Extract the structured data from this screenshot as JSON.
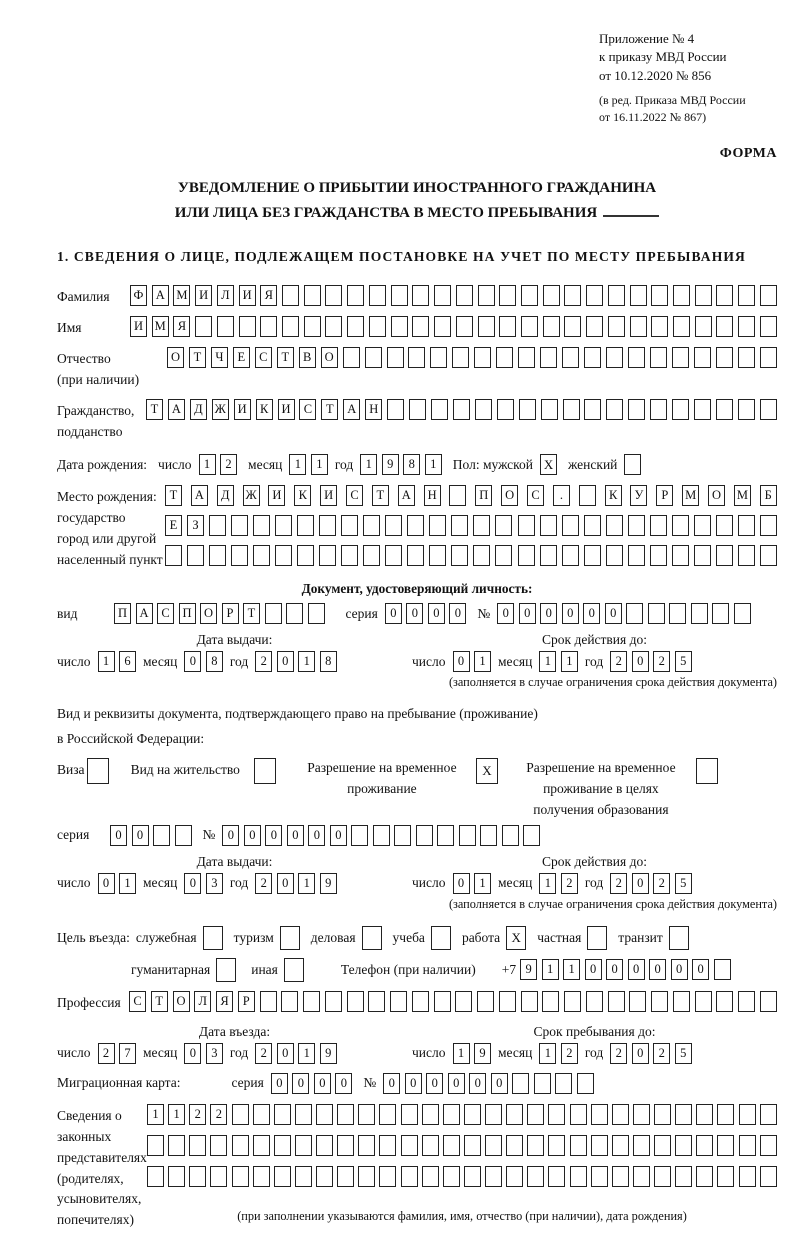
{
  "meta": {
    "appendix1": "Приложение № 4",
    "appendix2": "к приказу МВД России",
    "appendix3": "от 10.12.2020 № 856",
    "revision1": "(в ред. Приказа МВД России",
    "revision2": "от 16.11.2022 № 867)",
    "form_label": "ФОРМА"
  },
  "title": {
    "line1": "УВЕДОМЛЕНИЕ О ПРИБЫТИИ ИНОСТРАННОГО ГРАЖДАНИНА",
    "line2": "ИЛИ ЛИЦА БЕЗ ГРАЖДАНСТВА В МЕСТО ПРЕБЫВАНИЯ"
  },
  "section1": {
    "heading": "1. СВЕДЕНИЯ О ЛИЦЕ, ПОДЛЕЖАЩЕМ ПОСТАНОВКЕ НА УЧЕТ ПО МЕСТУ ПРЕБЫВАНИЯ",
    "surname": {
      "label": "Фамилия",
      "text": "ФАМИЛИЯ",
      "count": 30
    },
    "given_name": {
      "label": "Имя",
      "text": "ИМЯ",
      "count": 30
    },
    "patronymic": {
      "label1": "Отчество",
      "label2": "(при наличии)",
      "text": "ОТЧЕСТВО",
      "count": 28
    },
    "citizenship": {
      "label1": "Гражданство,",
      "label2": "подданство",
      "text": "ТАДЖИКИСТАН",
      "count": 29
    },
    "birth_date": {
      "label": "Дата рождения:",
      "day_label": "число",
      "day": {
        "text": "12",
        "count": 2
      },
      "month_label": "месяц",
      "month": {
        "text": "11",
        "count": 2
      },
      "year_label": "год",
      "year": {
        "text": "1981",
        "count": 4
      },
      "sex_label": "Пол: мужской",
      "male_mark": "X",
      "female_label": "женский",
      "female_mark": ""
    },
    "birth_place": {
      "label1": "Место рождения:",
      "label2": "государство",
      "label3": "город или другой",
      "label4": "населенный пункт",
      "row1": {
        "text": "ТАДЖИКИСТАН ПОС. КУРМОМБ",
        "count": 24
      },
      "row2": {
        "text": "ЕЗ",
        "count": 28
      },
      "row3": {
        "text": "",
        "count": 28
      }
    },
    "identity_doc": {
      "heading": "Документ, удостоверяющий личность:",
      "kind_label": "вид",
      "kind": {
        "text": "ПАСПОРТ",
        "count": 10
      },
      "series_label": "серия",
      "series": {
        "text": "0000",
        "count": 4
      },
      "number_label": "№",
      "number": {
        "text": "000000",
        "count": 12
      },
      "issue_label": "Дата выдачи:",
      "issue_day_label": "число",
      "issue_day": {
        "text": "16",
        "count": 2
      },
      "issue_month_label": "месяц",
      "issue_month": {
        "text": "08",
        "count": 2
      },
      "issue_year_label": "год",
      "issue_year": {
        "text": "2018",
        "count": 4
      },
      "expiry_label": "Срок действия до:",
      "expiry_day_label": "число",
      "expiry_day": {
        "text": "01",
        "count": 2
      },
      "expiry_month_label": "месяц",
      "expiry_month": {
        "text": "11",
        "count": 2
      },
      "expiry_year_label": "год",
      "expiry_year": {
        "text": "2025",
        "count": 4
      },
      "footnote": "(заполняется в случае ограничения срока действия документа)"
    },
    "residence_doc": {
      "intro1": "Вид и реквизиты документа, подтверждающего право на пребывание (проживание)",
      "intro2": "в Российской Федерации:",
      "opt1_label": "Виза",
      "opt1_mark": "",
      "opt2_label": "Вид на жительство",
      "opt2_mark": "",
      "opt3_label": "Разрешение на временное проживание",
      "opt3_mark": "X",
      "opt4_label": "Разрешение на временное проживание в целях получения образования",
      "opt4_mark": "",
      "series_label": "серия",
      "series": {
        "text": "00",
        "count": 4
      },
      "number_label": "№",
      "number": {
        "text": "000000",
        "count": 15
      },
      "issue_label": "Дата выдачи:",
      "issue_day_label": "число",
      "issue_day": {
        "text": "01",
        "count": 2
      },
      "issue_month_label": "месяц",
      "issue_month": {
        "text": "03",
        "count": 2
      },
      "issue_year_label": "год",
      "issue_year": {
        "text": "2019",
        "count": 4
      },
      "expiry_label": "Срок действия до:",
      "expiry_day_label": "число",
      "expiry_day": {
        "text": "01",
        "count": 2
      },
      "expiry_month_label": "месяц",
      "expiry_month": {
        "text": "12",
        "count": 2
      },
      "expiry_year_label": "год",
      "expiry_year": {
        "text": "2025",
        "count": 4
      },
      "footnote": "(заполняется в случае ограничения срока действия документа)"
    },
    "entry_purpose": {
      "label": "Цель въезда:",
      "opt_business_label": "служебная",
      "opt_business_mark": "",
      "opt_tourism_label": "туризм",
      "opt_tourism_mark": "",
      "opt_commercial_label": "деловая",
      "opt_commercial_mark": "",
      "opt_study_label": "учеба",
      "opt_study_mark": "",
      "opt_work_label": "работа",
      "opt_work_mark": "X",
      "opt_private_label": "частная",
      "opt_private_mark": "",
      "opt_transit_label": "транзит",
      "opt_transit_mark": "",
      "opt_humanitarian_label": "гуманитарная",
      "opt_humanitarian_mark": "",
      "opt_other_label": "иная",
      "opt_other_mark": ""
    },
    "phone": {
      "label": "Телефон (при наличии)",
      "prefix": "+7",
      "digits": {
        "text": "911000000",
        "count": 10
      }
    },
    "profession": {
      "label": "Профессия",
      "text": "СТОЛЯР",
      "count": 30
    },
    "entry_dates": {
      "entry_label": "Дата въезда:",
      "entry_day_label": "число",
      "entry_day": {
        "text": "27",
        "count": 2
      },
      "entry_month_label": "месяц",
      "entry_month": {
        "text": "03",
        "count": 2
      },
      "entry_year_label": "год",
      "entry_year": {
        "text": "2019",
        "count": 4
      },
      "stay_label": "Срок пребывания до:",
      "stay_day_label": "число",
      "stay_day": {
        "text": "19",
        "count": 2
      },
      "stay_month_label": "месяц",
      "stay_month": {
        "text": "12",
        "count": 2
      },
      "stay_year_label": "год",
      "stay_year": {
        "text": "2025",
        "count": 4
      }
    },
    "migration_card": {
      "label": "Миграционная карта:",
      "series_label": "серия",
      "series": {
        "text": "0000",
        "count": 4
      },
      "number_label": "№",
      "number": {
        "text": "000000",
        "count": 10
      }
    },
    "legal_reps": {
      "label1": "Сведения о",
      "label2": "законных",
      "label3": "представителях",
      "label4": "(родителях,",
      "label5": "усыновителях,",
      "label6": "попечителях)",
      "row1": {
        "text": "1122",
        "count": 30
      },
      "row2": {
        "text": "",
        "count": 30
      },
      "row3": {
        "text": "",
        "count": 30
      },
      "footnote": "(при заполнении указываются фамилия, имя, отчество (при наличии), дата рождения)"
    }
  }
}
